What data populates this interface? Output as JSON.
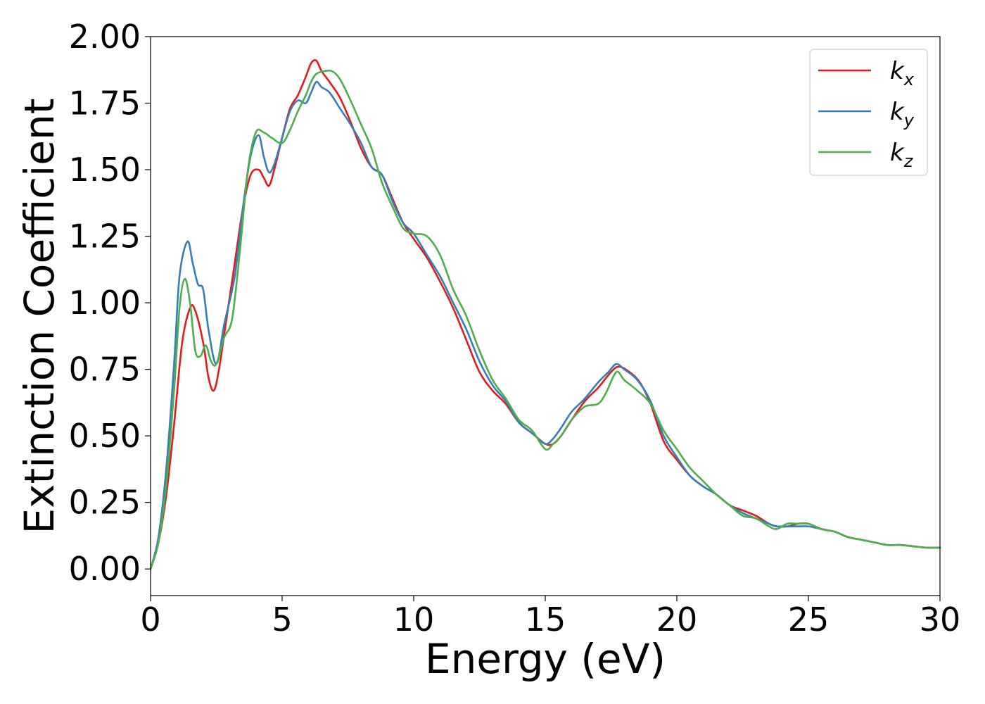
{
  "chart_data": {
    "type": "line",
    "xlabel": "Energy (eV)",
    "ylabel": "Extinction Coefficient",
    "xlim": [
      0,
      30
    ],
    "ylim": [
      -0.1,
      2.0
    ],
    "xticks": [
      0,
      5,
      10,
      15,
      20,
      25,
      30
    ],
    "xtick_labels": [
      "0",
      "5",
      "10",
      "15",
      "20",
      "25",
      "30"
    ],
    "yticks": [
      0.0,
      0.25,
      0.5,
      0.75,
      1.0,
      1.25,
      1.5,
      1.75,
      2.0
    ],
    "ytick_labels": [
      "0.00",
      "0.25",
      "0.50",
      "0.75",
      "1.00",
      "1.25",
      "1.50",
      "1.75",
      "2.00"
    ],
    "grid": false,
    "legend_position": "top-right",
    "series": [
      {
        "name": "k",
        "subscript": "x",
        "color": "#e41a1c",
        "x": [
          0,
          0.3,
          0.6,
          0.9,
          1.2,
          1.5,
          1.7,
          2.0,
          2.2,
          2.4,
          2.6,
          2.9,
          3.2,
          3.5,
          3.8,
          4.1,
          4.3,
          4.5,
          4.7,
          5.0,
          5.3,
          5.6,
          5.9,
          6.1,
          6.3,
          6.5,
          6.8,
          7.2,
          7.6,
          8.0,
          8.4,
          8.8,
          9.2,
          9.6,
          10.0,
          10.5,
          11.0,
          11.5,
          12.0,
          12.5,
          13.0,
          13.5,
          14.0,
          14.5,
          15.0,
          15.3,
          15.6,
          16.0,
          16.5,
          17.0,
          17.5,
          17.8,
          18.2,
          18.6,
          19.0,
          19.5,
          20.0,
          20.5,
          21.0,
          21.5,
          22.0,
          22.5,
          23.0,
          23.5,
          23.8,
          24.2,
          24.6,
          25.0,
          25.5,
          26.0,
          26.5,
          27.0,
          27.5,
          28.0,
          28.5,
          29.0,
          29.5,
          30.0
        ],
        "y": [
          0.0,
          0.1,
          0.28,
          0.55,
          0.85,
          0.98,
          0.97,
          0.85,
          0.72,
          0.67,
          0.75,
          0.95,
          1.15,
          1.35,
          1.48,
          1.5,
          1.47,
          1.44,
          1.5,
          1.62,
          1.73,
          1.78,
          1.85,
          1.9,
          1.91,
          1.87,
          1.83,
          1.77,
          1.68,
          1.58,
          1.51,
          1.48,
          1.39,
          1.3,
          1.24,
          1.17,
          1.08,
          0.98,
          0.86,
          0.74,
          0.67,
          0.62,
          0.55,
          0.51,
          0.47,
          0.47,
          0.5,
          0.56,
          0.63,
          0.68,
          0.74,
          0.76,
          0.74,
          0.7,
          0.62,
          0.48,
          0.41,
          0.35,
          0.31,
          0.28,
          0.24,
          0.22,
          0.2,
          0.17,
          0.16,
          0.16,
          0.17,
          0.17,
          0.15,
          0.14,
          0.12,
          0.11,
          0.1,
          0.09,
          0.09,
          0.085,
          0.08,
          0.08
        ]
      },
      {
        "name": "k",
        "subscript": "y",
        "color": "#377eb8",
        "x": [
          0,
          0.3,
          0.6,
          0.9,
          1.1,
          1.4,
          1.6,
          1.8,
          2.0,
          2.2,
          2.5,
          2.8,
          3.2,
          3.5,
          3.8,
          4.1,
          4.3,
          4.5,
          4.7,
          5.0,
          5.3,
          5.6,
          5.9,
          6.1,
          6.3,
          6.5,
          6.8,
          7.2,
          7.6,
          8.0,
          8.4,
          8.8,
          9.2,
          9.6,
          10.0,
          10.5,
          11.0,
          11.5,
          12.0,
          12.5,
          13.0,
          13.5,
          14.0,
          14.5,
          15.0,
          15.3,
          15.6,
          16.0,
          16.5,
          17.0,
          17.4,
          17.7,
          18.0,
          18.5,
          19.0,
          19.5,
          20.0,
          20.5,
          21.0,
          21.5,
          22.0,
          22.5,
          23.0,
          23.5,
          23.8,
          24.2,
          24.6,
          25.0,
          25.5,
          26.0,
          26.5,
          27.0,
          27.5,
          28.0,
          28.5,
          29.0,
          29.5,
          30.0
        ],
        "y": [
          0.0,
          0.12,
          0.38,
          0.78,
          1.1,
          1.23,
          1.15,
          1.07,
          1.05,
          0.9,
          0.77,
          0.92,
          1.1,
          1.35,
          1.55,
          1.63,
          1.55,
          1.49,
          1.52,
          1.62,
          1.72,
          1.76,
          1.75,
          1.79,
          1.83,
          1.81,
          1.79,
          1.73,
          1.67,
          1.6,
          1.51,
          1.48,
          1.38,
          1.3,
          1.26,
          1.18,
          1.1,
          1.0,
          0.9,
          0.78,
          0.69,
          0.63,
          0.55,
          0.51,
          0.47,
          0.49,
          0.53,
          0.59,
          0.64,
          0.7,
          0.74,
          0.77,
          0.75,
          0.71,
          0.63,
          0.5,
          0.42,
          0.35,
          0.31,
          0.28,
          0.24,
          0.21,
          0.19,
          0.17,
          0.16,
          0.16,
          0.16,
          0.16,
          0.15,
          0.14,
          0.12,
          0.11,
          0.1,
          0.09,
          0.09,
          0.085,
          0.08,
          0.08
        ]
      },
      {
        "name": "k",
        "subscript": "z",
        "color": "#4daf4a",
        "x": [
          0,
          0.3,
          0.6,
          0.9,
          1.1,
          1.3,
          1.5,
          1.7,
          1.9,
          2.1,
          2.3,
          2.5,
          2.8,
          3.1,
          3.4,
          3.7,
          4.0,
          4.3,
          4.6,
          5.0,
          5.3,
          5.6,
          5.9,
          6.1,
          6.3,
          6.6,
          6.9,
          7.2,
          7.6,
          8.0,
          8.4,
          8.8,
          9.2,
          9.6,
          10.0,
          10.5,
          11.0,
          11.5,
          12.0,
          12.5,
          13.0,
          13.5,
          14.0,
          14.5,
          15.0,
          15.3,
          15.6,
          16.0,
          16.5,
          17.0,
          17.3,
          17.7,
          18.0,
          18.5,
          19.0,
          19.5,
          20.0,
          20.5,
          21.0,
          21.5,
          22.0,
          22.5,
          23.0,
          23.5,
          23.8,
          24.2,
          24.6,
          25.0,
          25.5,
          26.0,
          26.5,
          27.0,
          27.5,
          28.0,
          28.5,
          29.0,
          29.5,
          30.0
        ],
        "y": [
          0.0,
          0.1,
          0.32,
          0.68,
          0.98,
          1.09,
          1.0,
          0.82,
          0.8,
          0.84,
          0.78,
          0.77,
          0.87,
          0.94,
          1.2,
          1.5,
          1.64,
          1.64,
          1.62,
          1.6,
          1.65,
          1.72,
          1.78,
          1.83,
          1.86,
          1.87,
          1.87,
          1.84,
          1.76,
          1.67,
          1.58,
          1.45,
          1.36,
          1.28,
          1.26,
          1.25,
          1.18,
          1.05,
          0.95,
          0.82,
          0.71,
          0.64,
          0.56,
          0.52,
          0.45,
          0.47,
          0.5,
          0.56,
          0.61,
          0.62,
          0.66,
          0.74,
          0.71,
          0.67,
          0.62,
          0.52,
          0.45,
          0.38,
          0.33,
          0.28,
          0.24,
          0.2,
          0.19,
          0.16,
          0.15,
          0.17,
          0.17,
          0.17,
          0.15,
          0.14,
          0.12,
          0.11,
          0.1,
          0.09,
          0.09,
          0.085,
          0.08,
          0.08
        ]
      }
    ]
  }
}
